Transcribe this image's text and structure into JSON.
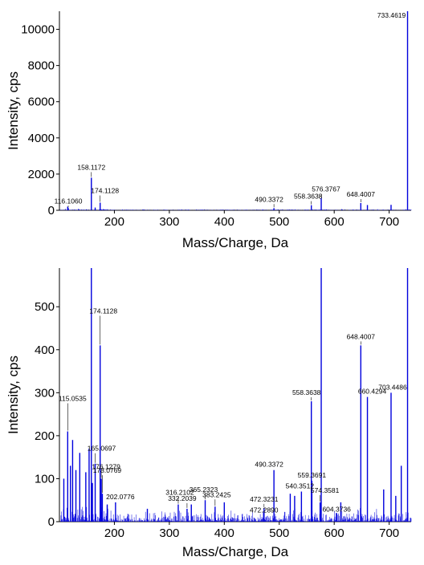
{
  "chart_data": [
    {
      "type": "bar",
      "subtype": "mass-spectrum",
      "xlabel": "Mass/Charge, Da",
      "ylabel": "Intensity, cps",
      "xlim": [
        100,
        740
      ],
      "ylim": [
        0,
        11000
      ],
      "xticks": [
        200,
        300,
        400,
        500,
        600,
        700
      ],
      "yticks": [
        0,
        2000,
        4000,
        6000,
        8000,
        10000
      ],
      "color": "#0000dd",
      "labeled_peaks": [
        {
          "mz": 116.106,
          "label": "116.1060",
          "intensity": 120
        },
        {
          "mz": 158.1172,
          "label": "158.1172",
          "intensity": 1800
        },
        {
          "mz": 174.1128,
          "label": "174.1128",
          "intensity": 420
        },
        {
          "mz": 490.3372,
          "label": "490.3372",
          "intensity": 120
        },
        {
          "mz": 558.3638,
          "label": "558.3638",
          "intensity": 280
        },
        {
          "mz": 576.3767,
          "label": "576.3767",
          "intensity": 680
        },
        {
          "mz": 648.4007,
          "label": "648.4007",
          "intensity": 400
        },
        {
          "mz": 733.4619,
          "label": "733.4619",
          "intensity": 11000
        }
      ],
      "other_peaks": [
        {
          "mz": 115.0535,
          "intensity": 200
        },
        {
          "mz": 660.4294,
          "intensity": 290
        },
        {
          "mz": 703.4486,
          "intensity": 300
        },
        {
          "mz": 165.0697,
          "intensity": 150
        }
      ]
    },
    {
      "type": "bar",
      "subtype": "mass-spectrum",
      "xlabel": "Mass/Charge, Da",
      "ylabel": "Intensity, cps",
      "xlim": [
        100,
        740
      ],
      "ylim": [
        0,
        590
      ],
      "xticks": [
        200,
        300,
        400,
        500,
        600,
        700
      ],
      "yticks": [
        0,
        100,
        200,
        300,
        400,
        500
      ],
      "color": "#0000dd",
      "labeled_peaks": [
        {
          "mz": 115.0535,
          "label": "115.0535",
          "intensity": 210
        },
        {
          "mz": 165.0697,
          "label": "165.0697",
          "intensity": 135
        },
        {
          "mz": 174.1128,
          "label": "174.1128",
          "intensity": 410
        },
        {
          "mz": 176.1279,
          "label": "176.1279",
          "intensity": 100
        },
        {
          "mz": 178.0769,
          "label": "178.0769",
          "intensity": 65
        },
        {
          "mz": 202.0776,
          "label": "202.0776",
          "intensity": 45
        },
        {
          "mz": 316.2102,
          "label": "316.2102",
          "intensity": 40
        },
        {
          "mz": 332.2039,
          "label": "332.2039",
          "intensity": 30
        },
        {
          "mz": 365.2323,
          "label": "365.2323",
          "intensity": 50
        },
        {
          "mz": 383.2425,
          "label": "383.2425",
          "intensity": 35
        },
        {
          "mz": 472.3231,
          "label": "472.3231",
          "intensity": 32
        },
        {
          "mz": 472.289,
          "label": "472.2890",
          "intensity": 25
        },
        {
          "mz": 490.3372,
          "label": "490.3372",
          "intensity": 120
        },
        {
          "mz": 540.3512,
          "label": "540.3512",
          "intensity": 70
        },
        {
          "mz": 558.3638,
          "label": "558.3638",
          "intensity": 280
        },
        {
          "mz": 559.3691,
          "label": "559.3691",
          "intensity": 95
        },
        {
          "mz": 574.3581,
          "label": "574.3581",
          "intensity": 45
        },
        {
          "mz": 604.3736,
          "label": "604.3736",
          "intensity": 20
        },
        {
          "mz": 648.4007,
          "label": "648.4007",
          "intensity": 410
        },
        {
          "mz": 660.4294,
          "label": "660.4294",
          "intensity": 290
        },
        {
          "mz": 703.4486,
          "label": "703.4486",
          "intensity": 300
        }
      ],
      "offscale_peaks": [
        {
          "mz": 158.1172,
          "intensity": 1800
        },
        {
          "mz": 576.3767,
          "intensity": 680
        },
        {
          "mz": 733.4619,
          "intensity": 11000
        }
      ],
      "other_peaks": [
        {
          "mz": 108,
          "intensity": 100
        },
        {
          "mz": 120,
          "intensity": 130
        },
        {
          "mz": 124,
          "intensity": 190
        },
        {
          "mz": 130,
          "intensity": 120
        },
        {
          "mz": 137,
          "intensity": 160
        },
        {
          "mz": 148,
          "intensity": 115
        },
        {
          "mz": 154,
          "intensity": 170
        },
        {
          "mz": 160,
          "intensity": 90
        },
        {
          "mz": 187,
          "intensity": 40
        },
        {
          "mz": 260,
          "intensity": 30
        },
        {
          "mz": 340,
          "intensity": 40
        },
        {
          "mz": 400,
          "intensity": 45
        },
        {
          "mz": 520,
          "intensity": 65
        },
        {
          "mz": 528,
          "intensity": 60
        },
        {
          "mz": 612,
          "intensity": 45
        },
        {
          "mz": 690,
          "intensity": 75
        },
        {
          "mz": 712,
          "intensity": 60
        },
        {
          "mz": 722,
          "intensity": 130
        }
      ]
    }
  ]
}
